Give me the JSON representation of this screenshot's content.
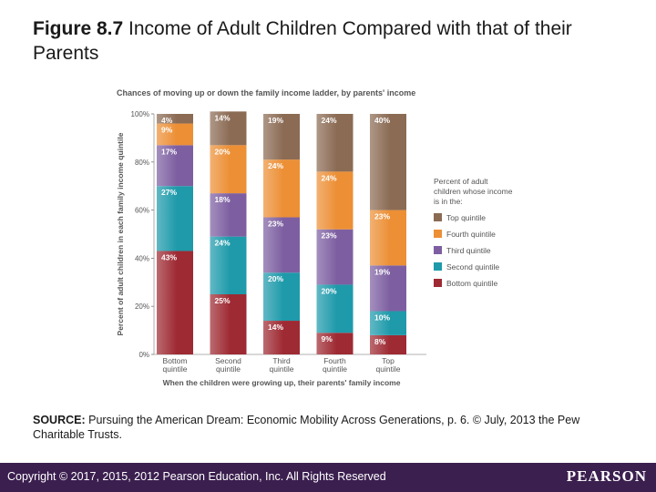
{
  "slide": {
    "title_bold": "Figure 8.7",
    "title_rest": "Income of Adult Children Compared with that of their Parents",
    "source_bold": "SOURCE:",
    "source_rest": "Pursuing the American Dream: Economic Mobility Across Generations, p. 6. © July, 2013 the Pew Charitable Trusts.",
    "footer": "Copyright © 2017, 2015, 2012 Pearson Education, Inc. All Rights Reserved",
    "logo": "PEARSON"
  },
  "chart_data": {
    "type": "bar",
    "stacked": true,
    "title": "Chances of moving up or down the family income ladder, by parents' income",
    "xlabel": "When the children were growing up, their parents' family income",
    "ylabel": "Percent of adult children in each family income quintile",
    "ylim": [
      0,
      100
    ],
    "yticks": [
      "0%",
      "20%",
      "40%",
      "60%",
      "80%",
      "100%"
    ],
    "categories": [
      "Bottom quintile",
      "Second quintile",
      "Third quintile",
      "Fourth quintile",
      "Top quintile"
    ],
    "legend_title": "Percent of adult children whose income is in the:",
    "legend_position": "right",
    "series": [
      {
        "name": "Bottom quintile",
        "color": "#9e2a33",
        "values": [
          43,
          25,
          14,
          9,
          8
        ]
      },
      {
        "name": "Second quintile",
        "color": "#1e9aaa",
        "values": [
          27,
          24,
          20,
          20,
          10
        ]
      },
      {
        "name": "Third quintile",
        "color": "#7d5fa1",
        "values": [
          17,
          18,
          23,
          23,
          19
        ]
      },
      {
        "name": "Fourth quintile",
        "color": "#ec8f35",
        "values": [
          9,
          20,
          24,
          24,
          23
        ]
      },
      {
        "name": "Top quintile",
        "color": "#8b6b54",
        "values": [
          4,
          14,
          19,
          24,
          40
        ]
      }
    ]
  }
}
